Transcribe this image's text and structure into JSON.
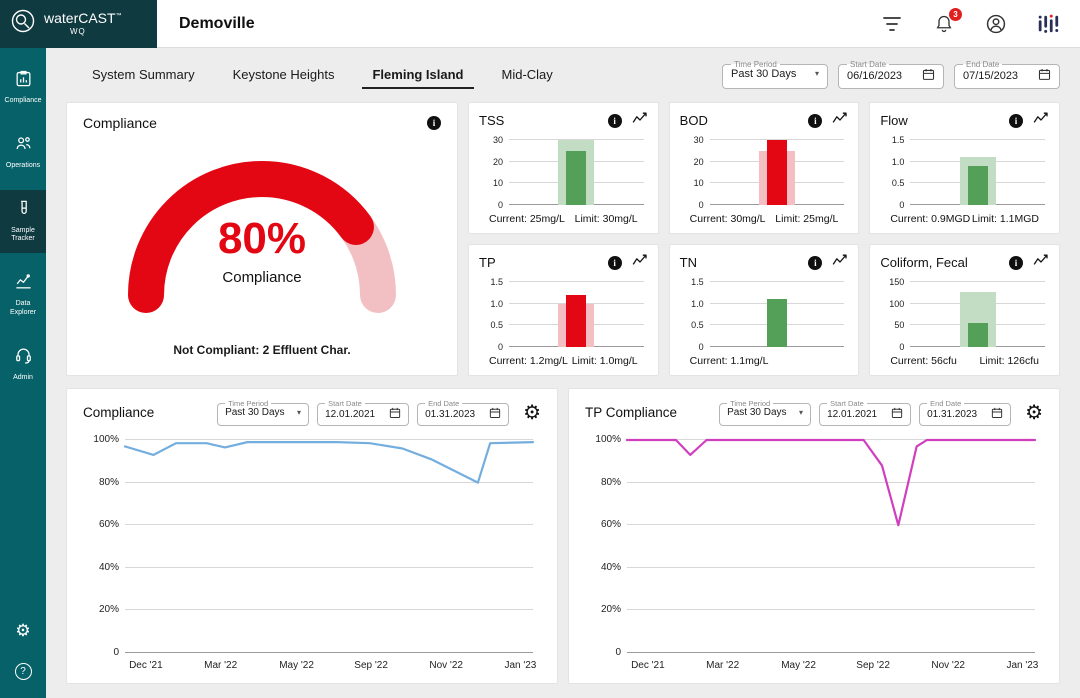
{
  "glyphs": {
    "info": "i",
    "gear": "⚙",
    "help": "?",
    "caret": "▾"
  },
  "header": {
    "brand_name": "waterCAST",
    "brand_tm": "™",
    "brand_sub": "WQ",
    "title": "Demoville",
    "notification_count": "3"
  },
  "sidebar": {
    "items": [
      {
        "label": "Compliance",
        "icon": "compliance",
        "active": false
      },
      {
        "label": "Operations",
        "icon": "operations",
        "active": false
      },
      {
        "label": "Sample Tracker",
        "icon": "sample-tracker",
        "active": true
      },
      {
        "label": "Data Explorer",
        "icon": "data-explorer",
        "active": false
      },
      {
        "label": "Admin",
        "icon": "admin",
        "active": false
      }
    ]
  },
  "tabs": [
    {
      "label": "System Summary",
      "active": false
    },
    {
      "label": "Keystone Heights",
      "active": false
    },
    {
      "label": "Fleming Island",
      "active": true
    },
    {
      "label": "Mid-Clay",
      "active": false
    }
  ],
  "filters": {
    "time_period": {
      "label": "Time Period",
      "value": "Past 30 Days"
    },
    "start_date": {
      "label": "Start Date",
      "value": "06/16/2023"
    },
    "end_date": {
      "label": "End Date",
      "value": "07/15/2023"
    }
  },
  "compliance_gauge": {
    "title": "Compliance",
    "percent": 80,
    "percent_label": "80%",
    "caption": "Compliance",
    "footnote": "Not Compliant: 2 Effluent Char.",
    "arc_color": "#e30613",
    "track_color": "#f2c0c3"
  },
  "metrics": [
    {
      "name": "TSS",
      "axis_max": 30,
      "tick_values": [
        30,
        20,
        10,
        0
      ],
      "tick_labels": [
        "30",
        "20",
        "10",
        "0"
      ],
      "current": 25,
      "limit": 30,
      "current_label": "Current: 25mg/L",
      "limit_label": "Limit: 30mg/L",
      "bar_color": "#55a058",
      "backdrop_color": "#c3ddc4"
    },
    {
      "name": "BOD",
      "axis_max": 30,
      "tick_values": [
        30,
        20,
        10,
        0
      ],
      "tick_labels": [
        "30",
        "20",
        "10",
        "0"
      ],
      "current": 30,
      "limit": 25,
      "current_label": "Current: 30mg/L",
      "limit_label": "Limit: 25mg/L",
      "bar_color": "#e30613",
      "backdrop_color": "#f3bfc2"
    },
    {
      "name": "Flow",
      "axis_max": 1.5,
      "tick_values": [
        1.5,
        1.0,
        0.5,
        0
      ],
      "tick_labels": [
        "1.5",
        "1.0",
        "0.5",
        "0"
      ],
      "current": 0.9,
      "limit": 1.1,
      "current_label": "Current: 0.9MGD",
      "limit_label": "Limit: 1.1MGD",
      "bar_color": "#55a058",
      "backdrop_color": "#c3ddc4"
    },
    {
      "name": "TP",
      "axis_max": 1.5,
      "tick_values": [
        1.5,
        1.0,
        0.5,
        0
      ],
      "tick_labels": [
        "1.5",
        "1.0",
        "0.5",
        "0"
      ],
      "current": 1.2,
      "limit": 1.0,
      "current_label": "Current: 1.2mg/L",
      "limit_label": "Limit: 1.0mg/L",
      "bar_color": "#e30613",
      "backdrop_color": "#f3bfc2"
    },
    {
      "name": "TN",
      "axis_max": 1.5,
      "tick_values": [
        1.5,
        1.0,
        0.5,
        0
      ],
      "tick_labels": [
        "1.5",
        "1.0",
        "0.5",
        "0"
      ],
      "current": 1.1,
      "limit": null,
      "current_label": "Current: 1.1mg/L",
      "limit_label": "",
      "bar_color": "#55a058",
      "backdrop_color": "#c3ddc4"
    },
    {
      "name": "Coliform, Fecal",
      "axis_max": 150,
      "tick_values": [
        150,
        100,
        50,
        0
      ],
      "tick_labels": [
        "150",
        "100",
        "50",
        "0"
      ],
      "current": 56,
      "limit": 126,
      "current_label": "Current: 56cfu",
      "limit_label": "Limit: 126cfu",
      "bar_color": "#55a058",
      "backdrop_color": "#c3ddc4"
    }
  ],
  "trend_charts": [
    {
      "title": "Compliance",
      "time_period": {
        "label": "Time Period",
        "value": "Past 30 Days"
      },
      "start_date": {
        "label": "Start Date",
        "value": "12.01.2021"
      },
      "end_date": {
        "label": "End Date",
        "value": "01.31.2023"
      },
      "line_color": "#74aede",
      "y_tick_values": [
        100,
        80,
        60,
        40,
        20,
        0
      ],
      "y_tick_labels": [
        "100%",
        "80%",
        "60%",
        "40%",
        "20%",
        "0"
      ],
      "x_tick_labels": [
        "Dec '21",
        "Mar '22",
        "May '22",
        "Sep '22",
        "Nov '22",
        "Jan '23"
      ],
      "points": [
        [
          0,
          97
        ],
        [
          0.07,
          93
        ],
        [
          0.125,
          98.5
        ],
        [
          0.2,
          98.5
        ],
        [
          0.245,
          96.5
        ],
        [
          0.3,
          99
        ],
        [
          0.52,
          99
        ],
        [
          0.6,
          98.5
        ],
        [
          0.68,
          96
        ],
        [
          0.75,
          91
        ],
        [
          0.865,
          80
        ],
        [
          0.895,
          98.5
        ],
        [
          1,
          99
        ]
      ]
    },
    {
      "title": "TP Compliance",
      "time_period": {
        "label": "Time Period",
        "value": "Past 30 Days"
      },
      "start_date": {
        "label": "Start Date",
        "value": "12.01.2021"
      },
      "end_date": {
        "label": "End Date",
        "value": "01.31.2023"
      },
      "line_color": "#cf3fbe",
      "y_tick_values": [
        100,
        80,
        60,
        40,
        20,
        0
      ],
      "y_tick_labels": [
        "100%",
        "80%",
        "60%",
        "40%",
        "20%",
        "0"
      ],
      "x_tick_labels": [
        "Dec '21",
        "Mar '22",
        "May '22",
        "Sep '22",
        "Nov '22",
        "Jan '23"
      ],
      "points": [
        [
          0,
          100
        ],
        [
          0.12,
          100
        ],
        [
          0.155,
          93
        ],
        [
          0.195,
          100
        ],
        [
          0.58,
          100
        ],
        [
          0.625,
          88
        ],
        [
          0.665,
          60
        ],
        [
          0.71,
          97
        ],
        [
          0.735,
          100
        ],
        [
          1,
          100
        ]
      ]
    }
  ]
}
